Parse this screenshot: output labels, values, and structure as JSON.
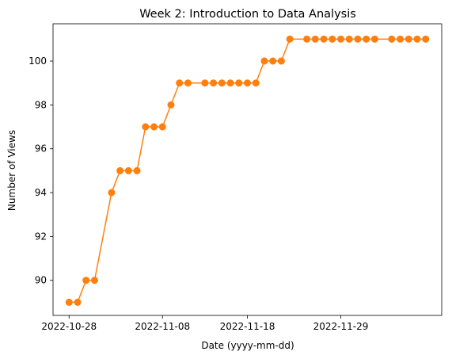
{
  "chart_data": {
    "type": "line",
    "title": "Week 2: Introduction to Data Analysis",
    "xlabel": "Date (yyyy-mm-dd)",
    "ylabel": "Number of Views",
    "x_tick_labels": [
      "2022-10-28",
      "2022-11-08",
      "2022-11-18",
      "2022-11-29"
    ],
    "y_ticks": [
      90,
      92,
      94,
      96,
      98,
      100
    ],
    "ylim": [
      88.4,
      101.7
    ],
    "grid": false,
    "series": [
      {
        "color": "#ff7f0e",
        "marker": "circle",
        "points": [
          {
            "x": "2022-10-28",
            "y": 89
          },
          {
            "x": "2022-10-29",
            "y": 89
          },
          {
            "x": "2022-10-30",
            "y": 90
          },
          {
            "x": "2022-10-31",
            "y": 90
          },
          {
            "x": "2022-11-02",
            "y": 94
          },
          {
            "x": "2022-11-03",
            "y": 95
          },
          {
            "x": "2022-11-04",
            "y": 95
          },
          {
            "x": "2022-11-05",
            "y": 95
          },
          {
            "x": "2022-11-06",
            "y": 97
          },
          {
            "x": "2022-11-07",
            "y": 97
          },
          {
            "x": "2022-11-08",
            "y": 97
          },
          {
            "x": "2022-11-09",
            "y": 98
          },
          {
            "x": "2022-11-10",
            "y": 99
          },
          {
            "x": "2022-11-11",
            "y": 99
          },
          {
            "x": "2022-11-13",
            "y": 99
          },
          {
            "x": "2022-11-14",
            "y": 99
          },
          {
            "x": "2022-11-15",
            "y": 99
          },
          {
            "x": "2022-11-16",
            "y": 99
          },
          {
            "x": "2022-11-17",
            "y": 99
          },
          {
            "x": "2022-11-18",
            "y": 99
          },
          {
            "x": "2022-11-19",
            "y": 99
          },
          {
            "x": "2022-11-20",
            "y": 100
          },
          {
            "x": "2022-11-21",
            "y": 100
          },
          {
            "x": "2022-11-22",
            "y": 100
          },
          {
            "x": "2022-11-23",
            "y": 101
          },
          {
            "x": "2022-11-25",
            "y": 101
          },
          {
            "x": "2022-11-26",
            "y": 101
          },
          {
            "x": "2022-11-27",
            "y": 101
          },
          {
            "x": "2022-11-28",
            "y": 101
          },
          {
            "x": "2022-11-29",
            "y": 101
          },
          {
            "x": "2022-11-30",
            "y": 101
          },
          {
            "x": "2022-12-01",
            "y": 101
          },
          {
            "x": "2022-12-02",
            "y": 101
          },
          {
            "x": "2022-12-03",
            "y": 101
          },
          {
            "x": "2022-12-05",
            "y": 101
          },
          {
            "x": "2022-12-06",
            "y": 101
          },
          {
            "x": "2022-12-07",
            "y": 101
          },
          {
            "x": "2022-12-08",
            "y": 101
          },
          {
            "x": "2022-12-09",
            "y": 101
          }
        ]
      }
    ]
  }
}
